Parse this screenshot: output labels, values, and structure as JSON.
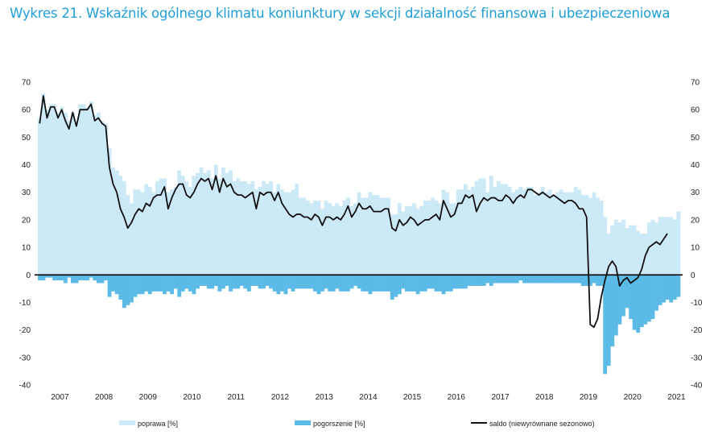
{
  "title": "Wykres 21. Wskaźnik ogólnego klimatu koniunktury w sekcji działalność finansowa i ubezpieczeniowa",
  "chart_data": {
    "type": "bar",
    "title": "Wykres 21. Wskaźnik ogólnego klimatu koniunktury w sekcji działalność finansowa i ubezpieczeniowa",
    "xlabel": "",
    "ylabel": "",
    "ylim": [
      -40,
      70
    ],
    "yticks": [
      70,
      60,
      50,
      40,
      30,
      20,
      10,
      0,
      -10,
      -20,
      -30,
      -40
    ],
    "years": [
      "2007",
      "2008",
      "2009",
      "2010",
      "2011",
      "2012",
      "2013",
      "2014",
      "2015",
      "2016",
      "2017",
      "2018",
      "2019",
      "2020",
      "2021"
    ],
    "start": "2007-01",
    "frequency": "monthly",
    "colors": {
      "poprawa": "#cce9f7",
      "pogorszenie": "#5bbbe6",
      "saldo": "#111111",
      "title": "#1f9fd8"
    },
    "legend": {
      "poprawa": "poprawa [%]",
      "pogorszenie": "pogorszenie [%]",
      "saldo": "saldo (niewyrównane sezonowo)"
    },
    "series": [
      {
        "name": "poprawa [%]",
        "type": "bar",
        "values": [
          57,
          66,
          60,
          62,
          62,
          59,
          61,
          59,
          56,
          59,
          55,
          62,
          62,
          61,
          63,
          58,
          59,
          56,
          55,
          46,
          39,
          38,
          36,
          34,
          29,
          26,
          31,
          31,
          30,
          33,
          32,
          30,
          34,
          35,
          35,
          30,
          31,
          32,
          38,
          36,
          34,
          32,
          36,
          37,
          39,
          37,
          38,
          35,
          40,
          35,
          39,
          37,
          38,
          34,
          35,
          34,
          34,
          33,
          34,
          31,
          32,
          34,
          33,
          34,
          30,
          33,
          31,
          30,
          30,
          31,
          33,
          28,
          28,
          27,
          26,
          27,
          27,
          24,
          27,
          26,
          25,
          26,
          25,
          27,
          28,
          25,
          26,
          30,
          28,
          28,
          30,
          29,
          29,
          28,
          28,
          28,
          22,
          22,
          26,
          23,
          25,
          25,
          26,
          24,
          25,
          27,
          27,
          28,
          27,
          26,
          31,
          30,
          26,
          26,
          31,
          31,
          33,
          31,
          32,
          34,
          35,
          35,
          30,
          36,
          32,
          34,
          33,
          33,
          32,
          30,
          31,
          32,
          31,
          32,
          32,
          29,
          30,
          32,
          30,
          31,
          29,
          30,
          31,
          30,
          30,
          30,
          32,
          31,
          29,
          29,
          28,
          30,
          28,
          27,
          21,
          15,
          18,
          20,
          19,
          20,
          17,
          18,
          18,
          16,
          15,
          15,
          19,
          20,
          19,
          21,
          21,
          21,
          21,
          20,
          23
        ]
      },
      {
        "name": "pogorszenie [%]",
        "type": "bar",
        "values": [
          -2,
          -2,
          -1,
          -1,
          -2,
          -2,
          -2,
          -3,
          -1,
          -3,
          -3,
          -2,
          -2,
          -2,
          -1,
          -2,
          -3,
          -3,
          -2,
          -8,
          -6,
          -7,
          -9,
          -12,
          -11,
          -10,
          -8,
          -7,
          -7,
          -6,
          -7,
          -6,
          -6,
          -6,
          -7,
          -6,
          -7,
          -5,
          -8,
          -6,
          -5,
          -6,
          -7,
          -5,
          -4,
          -4,
          -5,
          -5,
          -4,
          -6,
          -5,
          -4,
          -6,
          -5,
          -5,
          -4,
          -5,
          -6,
          -4,
          -4,
          -5,
          -5,
          -4,
          -5,
          -6,
          -7,
          -6,
          -7,
          -5,
          -6,
          -5,
          -5,
          -5,
          -5,
          -5,
          -6,
          -7,
          -6,
          -5,
          -6,
          -6,
          -5,
          -6,
          -6,
          -6,
          -5,
          -4,
          -5,
          -6,
          -6,
          -7,
          -6,
          -6,
          -6,
          -6,
          -6,
          -9,
          -8,
          -7,
          -5,
          -6,
          -6,
          -6,
          -7,
          -6,
          -6,
          -5,
          -5,
          -6,
          -6,
          -7,
          -6,
          -6,
          -5,
          -5,
          -5,
          -5,
          -4,
          -4,
          -4,
          -4,
          -4,
          -3,
          -4,
          -3,
          -3,
          -3,
          -3,
          -3,
          -3,
          -3,
          -2,
          -3,
          -3,
          -3,
          -3,
          -3,
          -3,
          -3,
          -3,
          -3,
          -3,
          -3,
          -3,
          -3,
          -3,
          -3,
          -3,
          -4,
          -4,
          -4,
          -3,
          -4,
          -4,
          -36,
          -33,
          -26,
          -22,
          -18,
          -15,
          -12,
          -16,
          -20,
          -21,
          -19,
          -18,
          -17,
          -16,
          -13,
          -11,
          -10,
          -9,
          -10,
          -9,
          -8,
          -9
        ]
      },
      {
        "name": "saldo (niewyrównane sezonowo)",
        "type": "line",
        "values": [
          55,
          65,
          57,
          61,
          61,
          57,
          60,
          56,
          53,
          59,
          54,
          60,
          60,
          60,
          62,
          56,
          57,
          55,
          54,
          39,
          33,
          30,
          24,
          21,
          17,
          19,
          22,
          24,
          23,
          26,
          25,
          28,
          29,
          29,
          32,
          24,
          28,
          31,
          33,
          33,
          29,
          28,
          30,
          33,
          35,
          34,
          35,
          31,
          36,
          30,
          35,
          32,
          33,
          30,
          29,
          29,
          28,
          29,
          30,
          24,
          30,
          29,
          30,
          30,
          27,
          30,
          26,
          24,
          22,
          21,
          22,
          22,
          21,
          21,
          20,
          22,
          21,
          18,
          21,
          21,
          20,
          21,
          20,
          22,
          25,
          21,
          23,
          26,
          24,
          24,
          25,
          23,
          23,
          23,
          24,
          24,
          17,
          16,
          20,
          18,
          19,
          21,
          20,
          18,
          19,
          20,
          20,
          21,
          22,
          20,
          27,
          24,
          21,
          22,
          26,
          26,
          29,
          28,
          29,
          23,
          26,
          28,
          27,
          28,
          28,
          27,
          27,
          29,
          28,
          26,
          28,
          29,
          28,
          31,
          31,
          30,
          29,
          30,
          29,
          28,
          29,
          28,
          27,
          26,
          27,
          27,
          26,
          24,
          24,
          21,
          -18,
          -19,
          -16,
          -8,
          -2,
          3,
          5,
          3,
          -4,
          -2,
          -1,
          -3,
          -2,
          -1,
          2,
          7,
          10,
          11,
          12,
          11,
          13,
          15
        ]
      }
    ]
  }
}
